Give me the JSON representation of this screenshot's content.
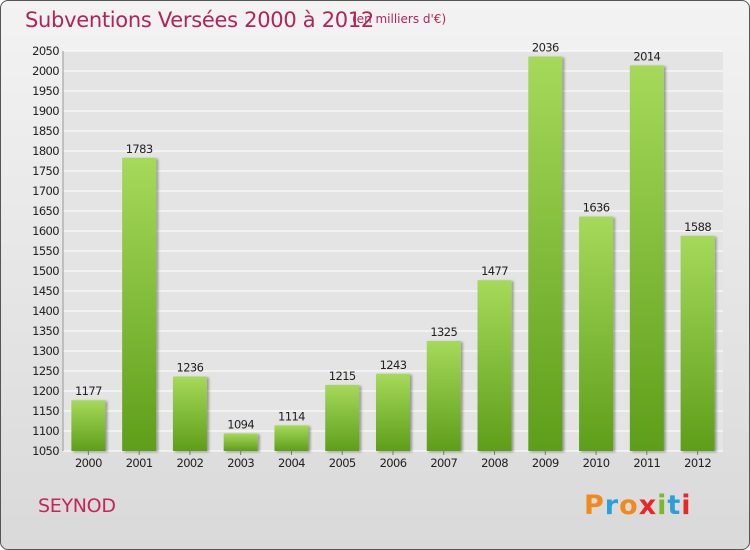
{
  "header": {
    "title": "Subventions Versées 2000 à 2012",
    "unit": "(en milliers d'€)"
  },
  "footer": {
    "commune": "SEYNOD",
    "logo_text": "Proxiti",
    "logo_colors": [
      "#f08a1c",
      "#2aa0d8",
      "#f08a1c",
      "#e8262a",
      "#7cb82f",
      "#2aa0d8",
      "#e8262a"
    ]
  },
  "colors": {
    "bar_light": "#a6d95a",
    "bar_dark": "#5e9e1a",
    "grid": "#ffffff",
    "text": "#222222",
    "title": "#b0245a"
  },
  "chart_data": {
    "type": "bar",
    "title": "Subventions Versées 2000 à 2012",
    "subtitle": "(en milliers d'€)",
    "xlabel": "",
    "ylabel": "",
    "categories": [
      "2000",
      "2001",
      "2002",
      "2003",
      "2004",
      "2005",
      "2006",
      "2007",
      "2008",
      "2009",
      "2010",
      "2011",
      "2012"
    ],
    "values": [
      1177,
      1783,
      1236,
      1094,
      1114,
      1215,
      1243,
      1325,
      1477,
      2036,
      1636,
      2014,
      1588
    ],
    "ylim": [
      1050,
      2050
    ],
    "ytick_step": 50,
    "grid": true,
    "data_labels": true
  }
}
